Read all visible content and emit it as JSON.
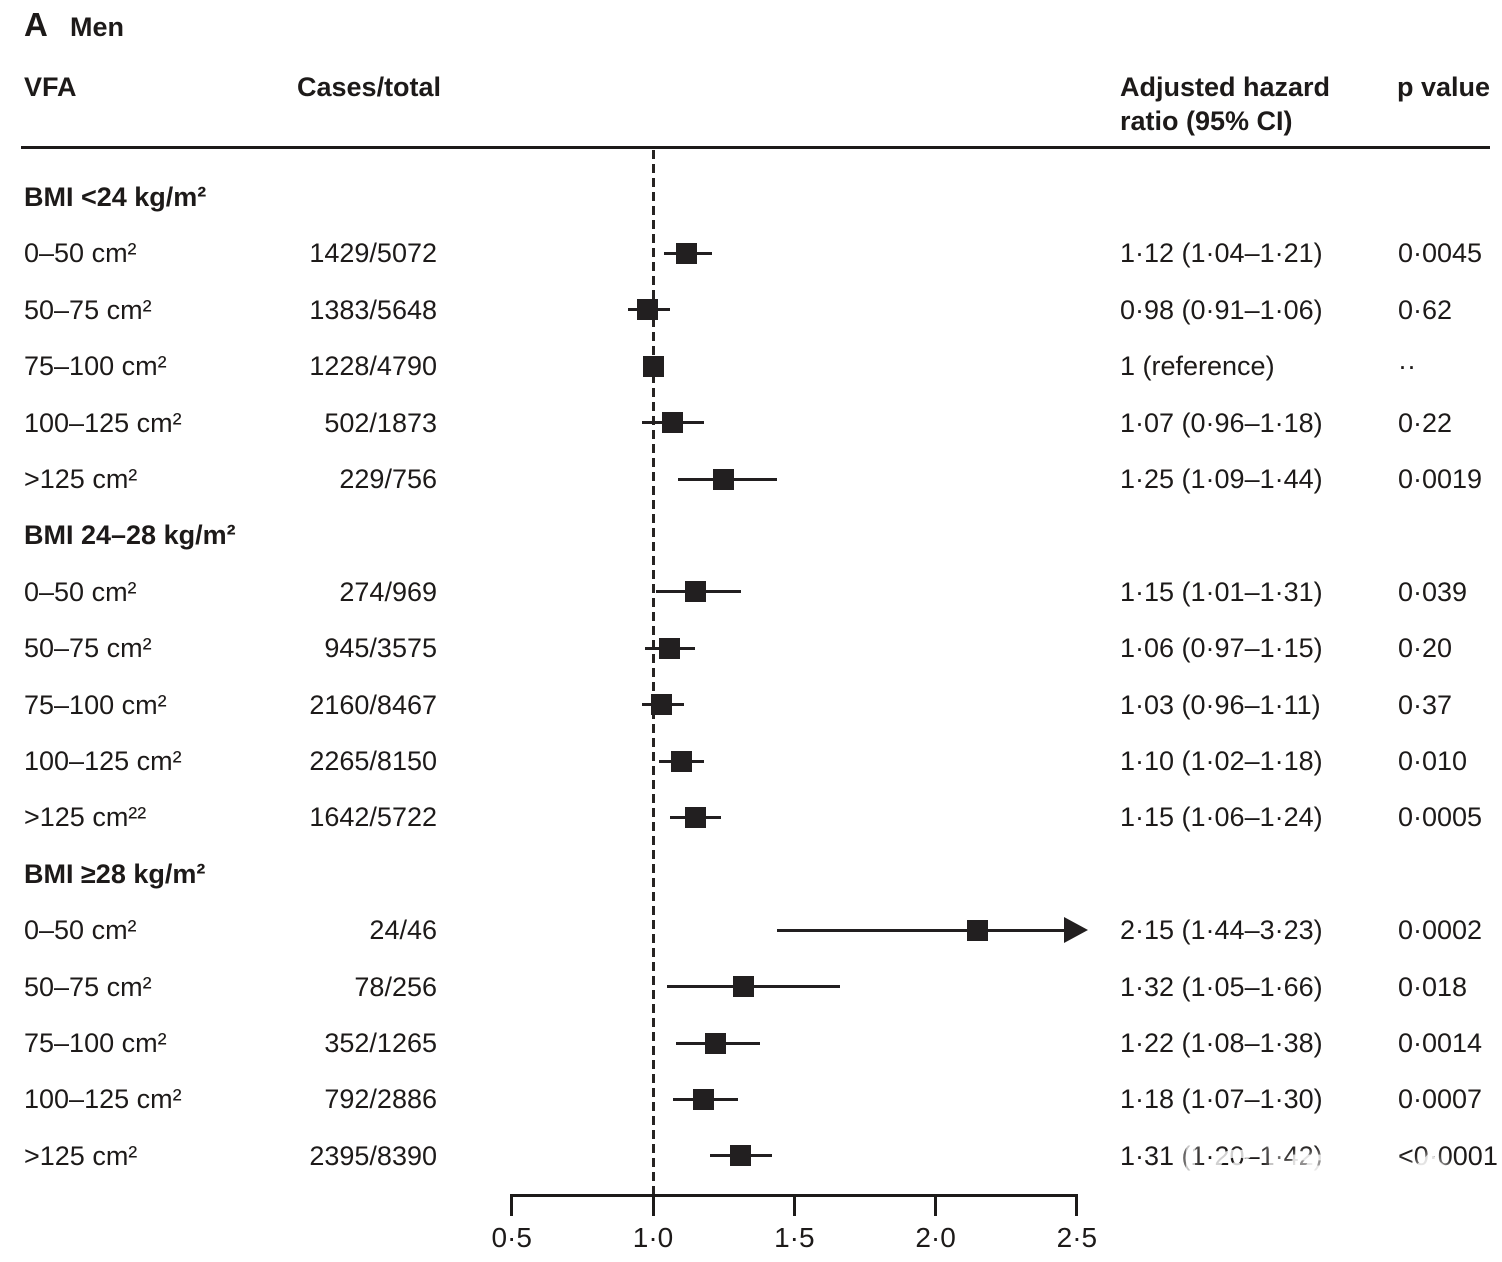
{
  "panel": {
    "label": "A",
    "title": "Men"
  },
  "columns": {
    "vfa": "VFA",
    "cases": "Cases/total",
    "hr_line1": "Adjusted hazard",
    "hr_line2": "ratio (95% CI)",
    "p": "p value"
  },
  "axis": {
    "tick_labels": [
      "0·5",
      "1·0",
      "1·5",
      "2·0",
      "2·5"
    ],
    "tick_values": [
      0.5,
      1.0,
      1.5,
      2.0,
      2.5
    ],
    "min": 0.5,
    "max": 2.5,
    "reference": 1.0
  },
  "watermark": {
    "chinese": "医咖会",
    "latin": "MEDIECO GROUP"
  },
  "chart_data": {
    "type": "forest",
    "panel": "A",
    "population": "Men",
    "x_axis": {
      "ticks": [
        0.5,
        1.0,
        1.5,
        2.0,
        2.5
      ],
      "range": [
        0.5,
        2.5
      ],
      "reference_line": 1.0,
      "scale": "linear"
    },
    "groups": [
      {
        "label": "BMI <24 kg/m²",
        "rows": [
          {
            "vfa": "0–50 cm²",
            "cases": "1429/5072",
            "hr": 1.12,
            "ci_low": 1.04,
            "ci_high": 1.21,
            "hr_text": "1·12 (1·04–1·21)",
            "p": "0·0045",
            "arrow": false
          },
          {
            "vfa": "50–75 cm²",
            "cases": "1383/5648",
            "hr": 0.98,
            "ci_low": 0.91,
            "ci_high": 1.06,
            "hr_text": "0·98 (0·91–1·06)",
            "p": "0·62",
            "arrow": false
          },
          {
            "vfa": "75–100 cm²",
            "cases": "1228/4790",
            "hr": 1.0,
            "ci_low": null,
            "ci_high": null,
            "hr_text": "1 (reference)",
            "p": "··",
            "arrow": false
          },
          {
            "vfa": "100–125 cm²",
            "cases": "502/1873",
            "hr": 1.07,
            "ci_low": 0.96,
            "ci_high": 1.18,
            "hr_text": "1·07 (0·96–1·18)",
            "p": "0·22",
            "arrow": false
          },
          {
            "vfa": ">125 cm²",
            "cases": "229/756",
            "hr": 1.25,
            "ci_low": 1.09,
            "ci_high": 1.44,
            "hr_text": "1·25 (1·09–1·44)",
            "p": "0·0019",
            "arrow": false
          }
        ]
      },
      {
        "label": "BMI 24–28 kg/m²",
        "rows": [
          {
            "vfa": "0–50 cm²",
            "cases": "274/969",
            "hr": 1.15,
            "ci_low": 1.01,
            "ci_high": 1.31,
            "hr_text": "1·15 (1·01–1·31)",
            "p": "0·039",
            "arrow": false
          },
          {
            "vfa": "50–75 cm²",
            "cases": "945/3575",
            "hr": 1.06,
            "ci_low": 0.97,
            "ci_high": 1.15,
            "hr_text": "1·06 (0·97–1·15)",
            "p": "0·20",
            "arrow": false
          },
          {
            "vfa": "75–100 cm²",
            "cases": "2160/8467",
            "hr": 1.03,
            "ci_low": 0.96,
            "ci_high": 1.11,
            "hr_text": "1·03 (0·96–1·11)",
            "p": "0·37",
            "arrow": false
          },
          {
            "vfa": "100–125 cm²",
            "cases": "2265/8150",
            "hr": 1.1,
            "ci_low": 1.02,
            "ci_high": 1.18,
            "hr_text": "1·10 (1·02–1·18)",
            "p": "0·010",
            "arrow": false
          },
          {
            "vfa": ">125 cm²²",
            "cases": "1642/5722",
            "hr": 1.15,
            "ci_low": 1.06,
            "ci_high": 1.24,
            "hr_text": "1·15 (1·06–1·24)",
            "p": "0·0005",
            "arrow": false
          }
        ]
      },
      {
        "label": "BMI ≥28 kg/m²",
        "rows": [
          {
            "vfa": "0–50 cm²",
            "cases": "24/46",
            "hr": 2.15,
            "ci_low": 1.44,
            "ci_high": 3.23,
            "hr_text": "2·15 (1·44–3·23)",
            "p": "0·0002",
            "arrow": true
          },
          {
            "vfa": "50–75 cm²",
            "cases": "78/256",
            "hr": 1.32,
            "ci_low": 1.05,
            "ci_high": 1.66,
            "hr_text": "1·32 (1·05–1·66)",
            "p": "0·018",
            "arrow": false
          },
          {
            "vfa": "75–100 cm²",
            "cases": "352/1265",
            "hr": 1.22,
            "ci_low": 1.08,
            "ci_high": 1.38,
            "hr_text": "1·22 (1·08–1·38)",
            "p": "0·0014",
            "arrow": false
          },
          {
            "vfa": "100–125 cm²",
            "cases": "792/2886",
            "hr": 1.18,
            "ci_low": 1.07,
            "ci_high": 1.3,
            "hr_text": "1·18 (1·07–1·30)",
            "p": "0·0007",
            "arrow": false
          },
          {
            "vfa": ">125 cm²",
            "cases": "2395/8390",
            "hr": 1.31,
            "ci_low": 1.2,
            "ci_high": 1.42,
            "hr_text": "1·31 (1·20–1·42)",
            "p": "<0·0001",
            "arrow": false
          }
        ]
      }
    ]
  }
}
